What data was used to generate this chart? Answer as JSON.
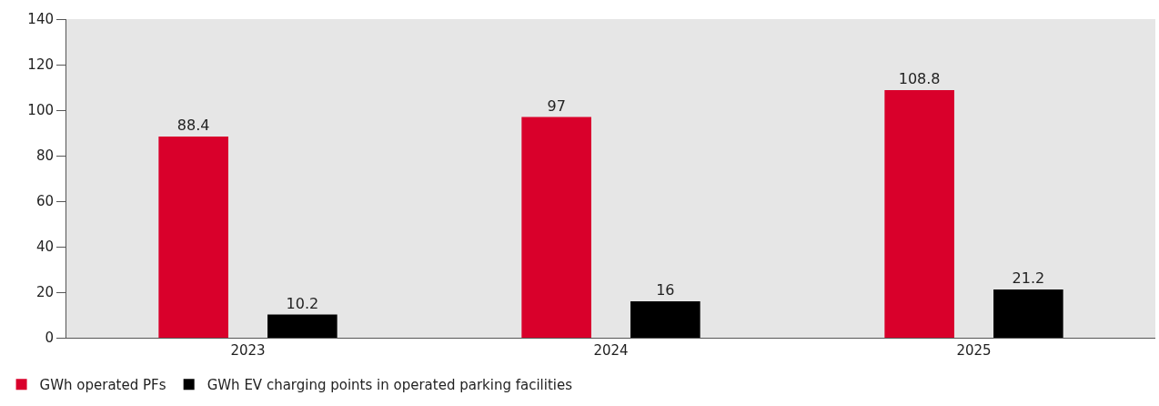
{
  "chart_data": {
    "type": "bar",
    "categories": [
      "2023",
      "2024",
      "2025"
    ],
    "series": [
      {
        "name": "GWh operated PFs",
        "color": "#d9002b",
        "values": [
          88.4,
          97,
          108.8
        ]
      },
      {
        "name": "GWh EV charging points in operated parking facilities",
        "color": "#000000",
        "values": [
          10.2,
          16,
          21.2
        ]
      }
    ],
    "ylim": [
      0,
      140
    ],
    "yticks": [
      0,
      20,
      40,
      60,
      80,
      100,
      120,
      140
    ],
    "data_labels": true,
    "grid": false,
    "legend": "bottom left"
  }
}
